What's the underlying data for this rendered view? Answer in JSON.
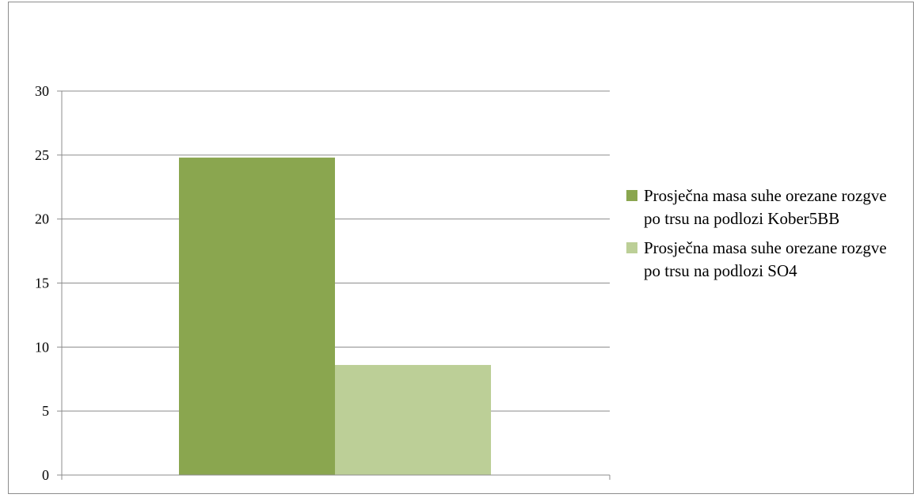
{
  "chart_data": {
    "type": "bar",
    "title": "",
    "xlabel": "",
    "ylabel": "",
    "categories": [
      ""
    ],
    "series": [
      {
        "name": "Prosječna masa suhe orezane rozgve po trsu na podlozi Kober5BB",
        "values": [
          24.8
        ],
        "color": "#8aa64f"
      },
      {
        "name": "Prosječna masa suhe orezane rozgve po trsu na podlozi SO4",
        "values": [
          8.6
        ],
        "color": "#bccf97"
      }
    ],
    "ylim": [
      0,
      30
    ],
    "yticks": [
      0,
      5,
      10,
      15,
      20,
      25,
      30
    ],
    "grid": true,
    "legend_position": "right"
  }
}
